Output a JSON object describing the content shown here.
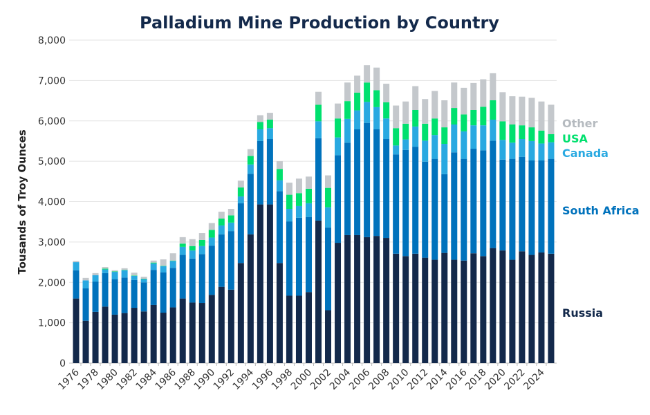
{
  "chart_data": {
    "type": "bar",
    "stacked": true,
    "title": "Palladium Mine Production by Country",
    "xlabel": "",
    "ylabel": "Tousands of Troy Ounces",
    "ylim": [
      0,
      8000
    ],
    "yticks": [
      0,
      1000,
      2000,
      3000,
      4000,
      5000,
      6000,
      7000,
      8000
    ],
    "ytick_labels": [
      "0",
      "1,000",
      "2,000",
      "3,000",
      "4,000",
      "5,000",
      "6,000",
      "7,000",
      "8,000"
    ],
    "grid": "horizontal",
    "legend_placement": "right, inline labels",
    "categories": [
      1976,
      1977,
      1978,
      1979,
      1980,
      1981,
      1982,
      1983,
      1984,
      1985,
      1986,
      1987,
      1988,
      1989,
      1990,
      1991,
      1992,
      1993,
      1994,
      1995,
      1996,
      1997,
      1998,
      1999,
      2000,
      2001,
      2002,
      2003,
      2004,
      2005,
      2006,
      2007,
      2008,
      2009,
      2010,
      2011,
      2012,
      2013,
      2014,
      2015,
      2016,
      2017,
      2018,
      2019,
      2020,
      2021,
      2022,
      2023,
      2024,
      2025
    ],
    "xtick_labels": [
      "1976",
      "1978",
      "1980",
      "1982",
      "1984",
      "1986",
      "1988",
      "1990",
      "1992",
      "1994",
      "1996",
      "1998",
      "2000",
      "2002",
      "2004",
      "2006",
      "2008",
      "2010",
      "2012",
      "2014",
      "2016",
      "2018",
      "2020",
      "2022",
      "2024"
    ],
    "series": [
      {
        "name": "Russia",
        "color": "#13294b",
        "values": [
          1600,
          1050,
          1270,
          1400,
          1200,
          1240,
          1370,
          1280,
          1440,
          1250,
          1380,
          1600,
          1500,
          1490,
          1690,
          1890,
          1820,
          2480,
          3190,
          3930,
          3930,
          2480,
          1670,
          1670,
          1760,
          3530,
          1310,
          2980,
          3170,
          3170,
          3120,
          3150,
          3100,
          2710,
          2650,
          2710,
          2610,
          2560,
          2730,
          2560,
          2540,
          2720,
          2650,
          2850,
          2790,
          2560,
          2770,
          2680,
          2740,
          2710
        ]
      },
      {
        "name": "South Africa",
        "color": "#0072bc",
        "values": [
          700,
          800,
          750,
          830,
          880,
          880,
          690,
          720,
          870,
          1000,
          980,
          1080,
          1090,
          1210,
          1220,
          1300,
          1450,
          1480,
          1500,
          1570,
          1620,
          1780,
          1840,
          1930,
          1860,
          2040,
          2050,
          2170,
          2290,
          2620,
          2830,
          2640,
          2450,
          2460,
          2630,
          2650,
          2380,
          2500,
          1950,
          2660,
          2520,
          2590,
          2620,
          2660,
          2250,
          2500,
          2340,
          2340,
          2280,
          2350
        ]
      },
      {
        "name": "Canada",
        "color": "#29a9e1",
        "values": [
          200,
          200,
          160,
          90,
          180,
          180,
          100,
          80,
          160,
          150,
          170,
          200,
          200,
          200,
          200,
          220,
          210,
          170,
          230,
          290,
          270,
          270,
          310,
          290,
          340,
          420,
          500,
          440,
          590,
          470,
          520,
          550,
          510,
          220,
          260,
          500,
          520,
          590,
          750,
          690,
          680,
          580,
          620,
          520,
          490,
          400,
          440,
          480,
          420,
          410
        ]
      },
      {
        "name": "USA",
        "color": "#00e06e",
        "values": [
          0,
          0,
          0,
          20,
          10,
          10,
          10,
          10,
          20,
          10,
          10,
          80,
          110,
          150,
          190,
          170,
          180,
          220,
          210,
          180,
          210,
          280,
          350,
          320,
          360,
          410,
          480,
          470,
          440,
          440,
          480,
          420,
          400,
          430,
          390,
          410,
          420,
          410,
          410,
          410,
          420,
          380,
          460,
          480,
          460,
          450,
          340,
          340,
          320,
          200
        ]
      },
      {
        "name": "Other",
        "color": "#c4c8cc",
        "values": [
          30,
          60,
          50,
          40,
          30,
          40,
          70,
          50,
          50,
          160,
          180,
          160,
          170,
          170,
          170,
          170,
          160,
          170,
          170,
          170,
          170,
          190,
          300,
          360,
          300,
          320,
          310,
          370,
          460,
          420,
          430,
          560,
          460,
          560,
          550,
          590,
          610,
          680,
          670,
          630,
          660,
          670,
          680,
          670,
          720,
          700,
          710,
          730,
          720,
          730
        ]
      }
    ]
  }
}
